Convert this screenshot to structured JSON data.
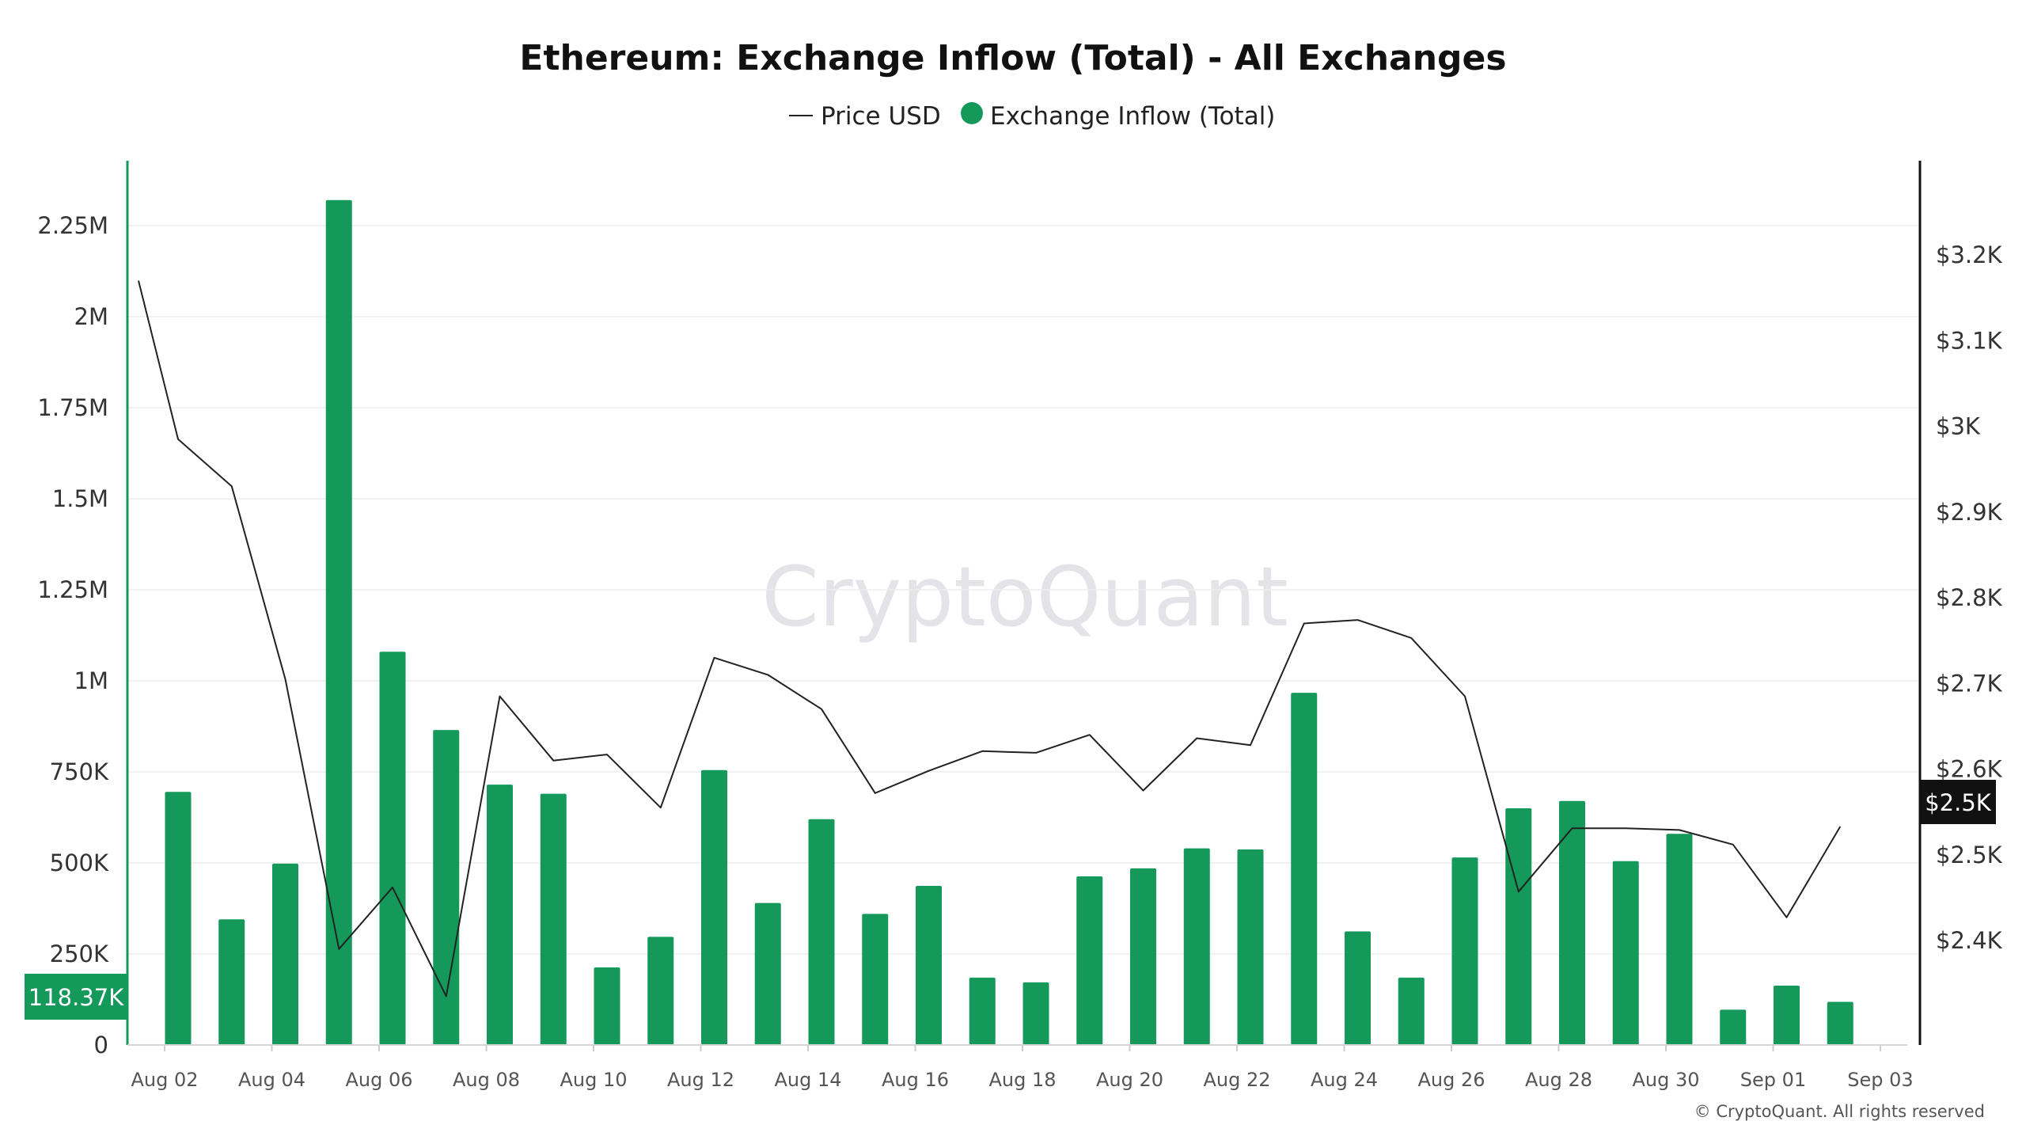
{
  "chart_data": {
    "type": "bar",
    "title": "Ethereum: Exchange Inflow (Total) - All Exchanges",
    "legend": [
      "Price USD",
      "Exchange Inflow (Total)"
    ],
    "legend_position": "top-center",
    "watermark": "CryptoQuant",
    "copyright": "© CryptoQuant. All rights reserved",
    "colors": {
      "bar": "#14995b",
      "line": "#222222",
      "left_axis": "#14995b",
      "right_axis": "#111111",
      "grid": "#eeeeee"
    },
    "left_axis": {
      "tick_values": [
        0,
        250000,
        500000,
        750000,
        1000000,
        1250000,
        1500000,
        1750000,
        2000000,
        2250000
      ],
      "tick_labels": [
        "0",
        "250K",
        "500K",
        "750K",
        "1M",
        "1.25M",
        "1.5M",
        "1.75M",
        "2M",
        "2.25M"
      ],
      "ylim": [
        0,
        2250000
      ]
    },
    "right_axis": {
      "tick_values": [
        2400,
        2500,
        2600,
        2700,
        2800,
        2900,
        3000,
        3100,
        3200
      ],
      "tick_labels": [
        "$2.4K",
        "$2.5K",
        "$2.6K",
        "$2.7K",
        "$2.8K",
        "$2.9K",
        "$3K",
        "$3.1K",
        "$3.2K"
      ],
      "ylim": [
        2400,
        3200
      ]
    },
    "x_axis": {
      "tick_labels": [
        "Aug 02",
        "Aug 04",
        "Aug 06",
        "Aug 08",
        "Aug 10",
        "Aug 12",
        "Aug 14",
        "Aug 16",
        "Aug 18",
        "Aug 20",
        "Aug 22",
        "Aug 24",
        "Aug 26",
        "Aug 28",
        "Aug 30",
        "Sep 01",
        "Sep 03"
      ]
    },
    "series": [
      {
        "name": "Exchange Inflow (Total)",
        "type": "bar",
        "axis": "left",
        "x": [
          "Aug 02",
          "Aug 03",
          "Aug 04",
          "Aug 05",
          "Aug 06",
          "Aug 07",
          "Aug 08",
          "Aug 09",
          "Aug 10",
          "Aug 11",
          "Aug 12",
          "Aug 13",
          "Aug 14",
          "Aug 15",
          "Aug 16",
          "Aug 17",
          "Aug 18",
          "Aug 19",
          "Aug 20",
          "Aug 21",
          "Aug 22",
          "Aug 23",
          "Aug 24",
          "Aug 25",
          "Aug 26",
          "Aug 27",
          "Aug 28",
          "Aug 29",
          "Aug 30",
          "Aug 31",
          "Sep 01",
          "Sep 02"
        ],
        "values": [
          695000,
          345000,
          498000,
          2320000,
          1080000,
          865000,
          715000,
          690000,
          213000,
          297000,
          755000,
          390000,
          620000,
          360000,
          437000,
          185000,
          172000,
          463000,
          485000,
          540000,
          537000,
          967000,
          312000,
          185000,
          515000,
          650000,
          670000,
          505000,
          580000,
          97000,
          163000,
          118370
        ]
      },
      {
        "name": "Price USD",
        "type": "line",
        "axis": "right",
        "x": [
          "Aug 01",
          "Aug 02",
          "Aug 03",
          "Aug 04",
          "Aug 05",
          "Aug 06",
          "Aug 07",
          "Aug 08",
          "Aug 09",
          "Aug 10",
          "Aug 11",
          "Aug 12",
          "Aug 13",
          "Aug 14",
          "Aug 15",
          "Aug 16",
          "Aug 17",
          "Aug 18",
          "Aug 19",
          "Aug 20",
          "Aug 21",
          "Aug 22",
          "Aug 23",
          "Aug 24",
          "Aug 25",
          "Aug 26",
          "Aug 27",
          "Aug 28",
          "Aug 29",
          "Aug 30",
          "Aug 31",
          "Sep 01",
          "Sep 02"
        ],
        "values": [
          3170,
          2985,
          2930,
          2705,
          2390,
          2462,
          2335,
          2685,
          2610,
          2617,
          2555,
          2730,
          2710,
          2670,
          2572,
          2598,
          2621,
          2619,
          2640,
          2575,
          2636,
          2628,
          2770,
          2774,
          2753,
          2685,
          2457,
          2531,
          2531,
          2529,
          2512,
          2427,
          2533
        ]
      }
    ],
    "current_labels": {
      "left": "118.37K",
      "right": "$2.5K"
    }
  }
}
